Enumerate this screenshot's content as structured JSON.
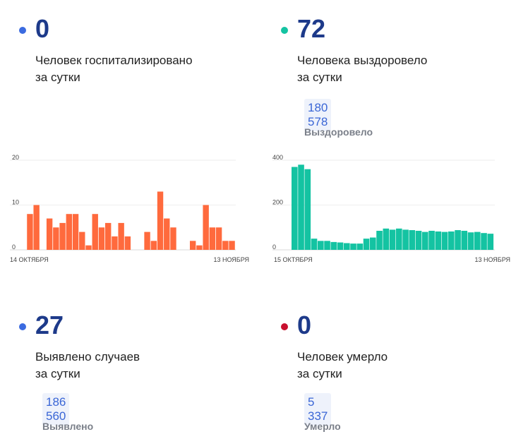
{
  "cards": {
    "hospitalized": {
      "value": "0",
      "desc1": "Человек госпитализировано",
      "desc2": "за сутки",
      "dot_color": "#3b6be0"
    },
    "recovered": {
      "value": "72",
      "desc1": "Человека выздоровело",
      "desc2": "за сутки",
      "total": "180 578",
      "total_label": "Выздоровело",
      "dot_color": "#14c3a2"
    },
    "cases": {
      "value": "27",
      "desc1": "Выявлено случаев",
      "desc2": "за сутки",
      "total": "186 560",
      "total_label": "Выявлено",
      "dot_color": "#3b6be0"
    },
    "deaths": {
      "value": "0",
      "desc1": "Человек умерло",
      "desc2": "за сутки",
      "total": "5 337",
      "total_label": "Умерло",
      "dot_color": "#c8102e"
    }
  },
  "chart_data": [
    {
      "type": "bar",
      "color": "#ff6a3d",
      "x_start_label": "14 ОКТЯБРЯ",
      "x_end_label": "13 НОЯБРЯ",
      "yticks": [
        "0",
        "10",
        "20"
      ],
      "ylim": [
        0,
        20
      ],
      "values": [
        0,
        8,
        10,
        0,
        7,
        5,
        6,
        8,
        8,
        4,
        1,
        8,
        5,
        6,
        3,
        6,
        3,
        0,
        0,
        4,
        2,
        13,
        7,
        5,
        0,
        0,
        2,
        1,
        10,
        5,
        5,
        2,
        2
      ]
    },
    {
      "type": "bar",
      "color": "#14c3a2",
      "x_start_label": "15 ОКТЯБРЯ",
      "x_end_label": "13 НОЯБРЯ",
      "yticks": [
        "0",
        "200",
        "400"
      ],
      "ylim": [
        0,
        400
      ],
      "values": [
        370,
        380,
        360,
        50,
        40,
        40,
        35,
        33,
        30,
        28,
        28,
        50,
        55,
        85,
        95,
        90,
        95,
        90,
        88,
        85,
        80,
        85,
        82,
        80,
        82,
        88,
        85,
        78,
        80,
        75,
        72
      ]
    }
  ]
}
